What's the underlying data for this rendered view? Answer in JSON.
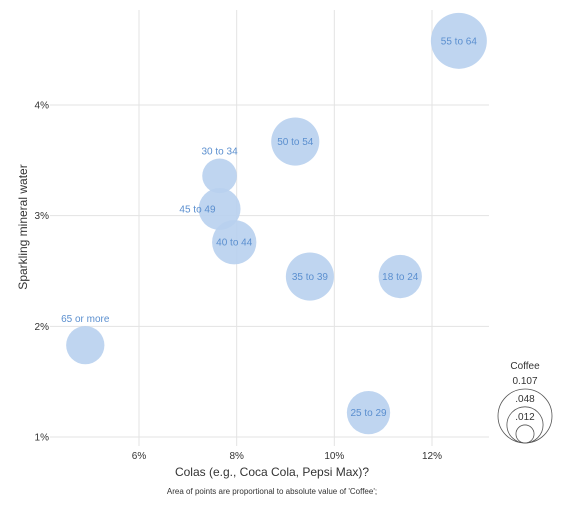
{
  "chart_data": {
    "type": "scatter",
    "xlabel": "Colas (e.g., Coca Cola, Pepsi Max)?",
    "ylabel": "Sparkling mineral water",
    "note": "Area of points are proportional to absolute value of 'Coffee';",
    "xlim": [
      4.0,
      13.1
    ],
    "ylim": [
      0.8,
      4.9
    ],
    "x_ticks": [
      6,
      8,
      10,
      12
    ],
    "x_tick_labels": [
      "6%",
      "8%",
      "10%",
      "12%"
    ],
    "y_ticks": [
      1,
      2,
      3,
      4
    ],
    "y_tick_labels": [
      "1%",
      "2%",
      "3%",
      "4%"
    ],
    "grid": true,
    "color": "#b8d0ee",
    "label_color": "#5b8fcf",
    "size_legend": {
      "title": "Coffee",
      "placement": "right",
      "values": [
        0.107,
        0.048,
        0.012
      ],
      "labels": [
        "0.107",
        ".048",
        ".012"
      ]
    },
    "points": [
      {
        "label": "55 to 64",
        "x": 12.55,
        "y": 4.58,
        "size": 0.107,
        "label_pos": "center"
      },
      {
        "label": "50 to 54",
        "x": 9.2,
        "y": 3.67,
        "size": 0.079,
        "label_pos": "center"
      },
      {
        "label": "30 to 34",
        "x": 7.65,
        "y": 3.36,
        "size": 0.041,
        "label_pos": "above"
      },
      {
        "label": "45 to 49",
        "x": 7.65,
        "y": 3.06,
        "size": 0.06,
        "label_pos": "left"
      },
      {
        "label": "40 to 44",
        "x": 7.95,
        "y": 2.76,
        "size": 0.067,
        "label_pos": "center"
      },
      {
        "label": "35 to 39",
        "x": 9.5,
        "y": 2.45,
        "size": 0.079,
        "label_pos": "center"
      },
      {
        "label": "18 to 24",
        "x": 11.35,
        "y": 2.45,
        "size": 0.064,
        "label_pos": "center"
      },
      {
        "label": "65 or more",
        "x": 4.9,
        "y": 1.83,
        "size": 0.05,
        "label_pos": "above"
      },
      {
        "label": "25 to 29",
        "x": 10.7,
        "y": 1.22,
        "size": 0.064,
        "label_pos": "center"
      }
    ]
  }
}
